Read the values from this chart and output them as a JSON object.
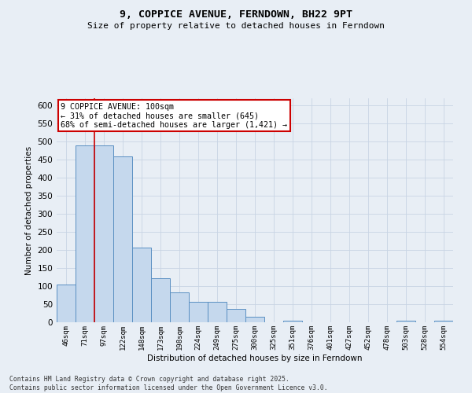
{
  "title": "9, COPPICE AVENUE, FERNDOWN, BH22 9PT",
  "subtitle": "Size of property relative to detached houses in Ferndown",
  "xlabel": "Distribution of detached houses by size in Ferndown",
  "ylabel": "Number of detached properties",
  "categories": [
    "46sqm",
    "71sqm",
    "97sqm",
    "122sqm",
    "148sqm",
    "173sqm",
    "198sqm",
    "224sqm",
    "249sqm",
    "275sqm",
    "300sqm",
    "325sqm",
    "351sqm",
    "376sqm",
    "401sqm",
    "427sqm",
    "452sqm",
    "478sqm",
    "503sqm",
    "528sqm",
    "554sqm"
  ],
  "values": [
    105,
    490,
    490,
    458,
    207,
    122,
    83,
    57,
    57,
    38,
    15,
    0,
    5,
    0,
    0,
    0,
    0,
    0,
    5,
    0,
    5
  ],
  "bar_color": "#c5d8ed",
  "bar_edge_color": "#5a8fc2",
  "background_color": "#e8eef5",
  "grid_color": "#c8d4e4",
  "annotation_text": "9 COPPICE AVENUE: 100sqm\n← 31% of detached houses are smaller (645)\n68% of semi-detached houses are larger (1,421) →",
  "annotation_box_color": "#ffffff",
  "annotation_box_edge": "#cc0000",
  "vline_x": 1.5,
  "vline_color": "#cc0000",
  "footnote": "Contains HM Land Registry data © Crown copyright and database right 2025.\nContains public sector information licensed under the Open Government Licence v3.0.",
  "ylim": [
    0,
    620
  ],
  "yticks": [
    0,
    50,
    100,
    150,
    200,
    250,
    300,
    350,
    400,
    450,
    500,
    550,
    600
  ]
}
